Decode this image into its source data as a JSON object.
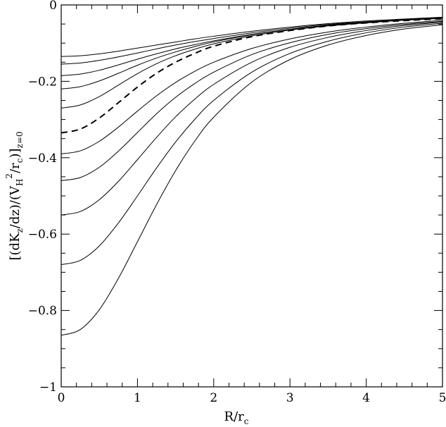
{
  "chart_data": {
    "type": "line",
    "title": "",
    "xlabel": {
      "main": "R/r",
      "sub": "c"
    },
    "ylabel": {
      "p1": "[(dK",
      "p1_sub": "z",
      "p2": "/dz)/(V",
      "p2_sub": "H",
      "p2_sup": "2",
      "p3": "/r",
      "p3_sub": "c",
      "p4": ")]",
      "p4_sub": "z=0"
    },
    "xlim": [
      0,
      5
    ],
    "ylim": [
      -1,
      0
    ],
    "x_major_ticks": [
      0,
      1,
      2,
      3,
      4,
      5
    ],
    "y_major_ticks": [
      -1,
      -0.8,
      -0.6,
      -0.4,
      -0.2,
      0
    ],
    "x_tick_labels": [
      "0",
      "1",
      "2",
      "3",
      "4",
      "5"
    ],
    "y_tick_labels": [
      "−1",
      "−0.8",
      "−0.6",
      "−0.4",
      "−0.2",
      "0"
    ],
    "grid": false,
    "legend": "none",
    "line_color": "#000000",
    "x": [
      0,
      0.25,
      0.5,
      0.75,
      1,
      1.25,
      1.5,
      1.75,
      2,
      2.5,
      3,
      3.5,
      4,
      4.5,
      5
    ],
    "series": [
      {
        "style": "solid",
        "values": [
          -0.135,
          -0.133,
          -0.128,
          -0.121,
          -0.113,
          -0.105,
          -0.097,
          -0.089,
          -0.082,
          -0.069,
          -0.058,
          -0.049,
          -0.042,
          -0.037,
          -0.032
        ]
      },
      {
        "style": "solid",
        "values": [
          -0.155,
          -0.152,
          -0.145,
          -0.136,
          -0.126,
          -0.115,
          -0.105,
          -0.096,
          -0.088,
          -0.073,
          -0.061,
          -0.051,
          -0.044,
          -0.038,
          -0.033
        ]
      },
      {
        "style": "solid",
        "values": [
          -0.185,
          -0.181,
          -0.171,
          -0.157,
          -0.142,
          -0.128,
          -0.115,
          -0.104,
          -0.094,
          -0.077,
          -0.064,
          -0.053,
          -0.045,
          -0.039,
          -0.034
        ]
      },
      {
        "style": "solid",
        "values": [
          -0.22,
          -0.214,
          -0.199,
          -0.179,
          -0.158,
          -0.139,
          -0.123,
          -0.109,
          -0.097,
          -0.078,
          -0.064,
          -0.054,
          -0.046,
          -0.04,
          -0.035
        ]
      },
      {
        "style": "solid",
        "values": [
          -0.27,
          -0.262,
          -0.24,
          -0.21,
          -0.18,
          -0.154,
          -0.133,
          -0.116,
          -0.102,
          -0.081,
          -0.066,
          -0.055,
          -0.047,
          -0.04,
          -0.035
        ]
      },
      {
        "style": "dashed",
        "values": [
          -0.335,
          -0.325,
          -0.296,
          -0.256,
          -0.215,
          -0.179,
          -0.15,
          -0.127,
          -0.108,
          -0.083,
          -0.067,
          -0.055,
          -0.047,
          -0.041,
          -0.036
        ]
      },
      {
        "style": "solid",
        "values": [
          -0.39,
          -0.382,
          -0.357,
          -0.32,
          -0.278,
          -0.238,
          -0.203,
          -0.174,
          -0.15,
          -0.114,
          -0.089,
          -0.071,
          -0.058,
          -0.048,
          -0.04
        ]
      },
      {
        "style": "solid",
        "values": [
          -0.46,
          -0.452,
          -0.425,
          -0.383,
          -0.334,
          -0.285,
          -0.242,
          -0.206,
          -0.176,
          -0.13,
          -0.099,
          -0.077,
          -0.062,
          -0.051,
          -0.043
        ]
      },
      {
        "style": "solid",
        "values": [
          -0.55,
          -0.541,
          -0.51,
          -0.462,
          -0.405,
          -0.347,
          -0.293,
          -0.247,
          -0.208,
          -0.15,
          -0.111,
          -0.085,
          -0.067,
          -0.054,
          -0.045
        ]
      },
      {
        "style": "solid",
        "values": [
          -0.68,
          -0.669,
          -0.631,
          -0.571,
          -0.5,
          -0.427,
          -0.359,
          -0.3,
          -0.25,
          -0.176,
          -0.127,
          -0.095,
          -0.073,
          -0.058,
          -0.048
        ]
      },
      {
        "style": "solid",
        "values": [
          -0.865,
          -0.85,
          -0.798,
          -0.716,
          -0.62,
          -0.523,
          -0.434,
          -0.357,
          -0.294,
          -0.202,
          -0.143,
          -0.105,
          -0.08,
          -0.063,
          -0.052
        ]
      }
    ]
  }
}
